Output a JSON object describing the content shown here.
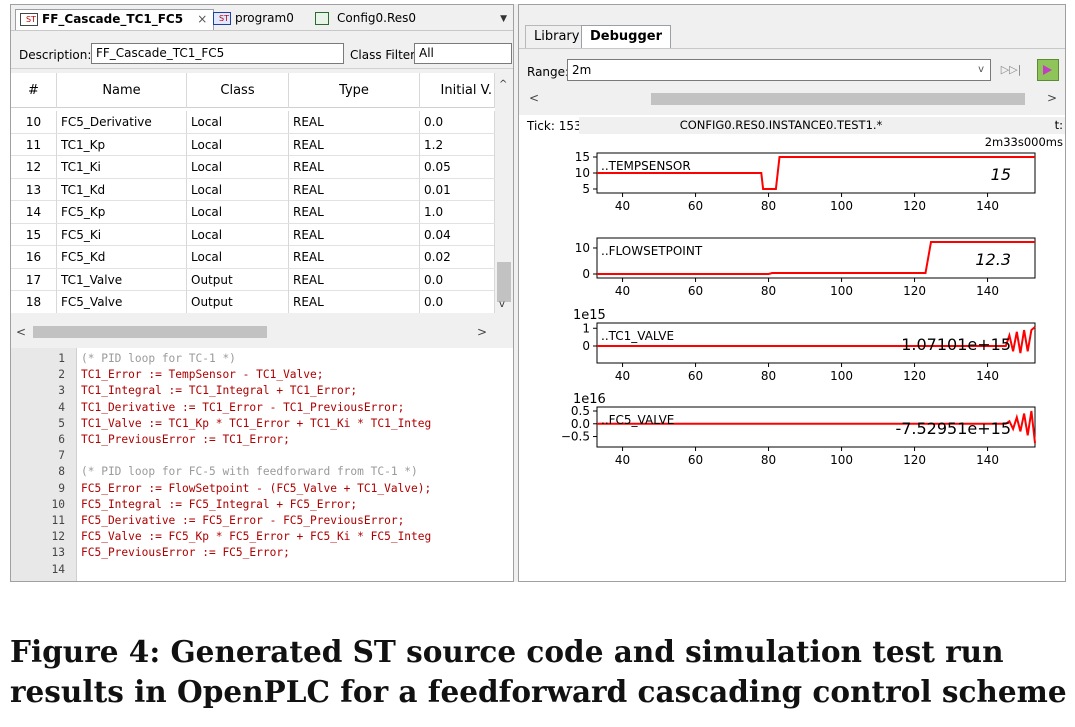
{
  "editor": {
    "tabs": [
      {
        "icon": "ST",
        "label": "FF_Cascade_TC1_FC5",
        "close": "×"
      },
      {
        "icon": "ST",
        "label": "program0"
      },
      {
        "icon": "",
        "label": "Config0.Res0"
      }
    ],
    "description_label": "Description:",
    "description_value": "FF_Cascade_TC1_FC5",
    "class_filter_label": "Class Filter:",
    "class_filter_value": "All",
    "columns": [
      "#",
      "Name",
      "Class",
      "Type",
      "Initial V."
    ],
    "rows": [
      [
        "10",
        "FC5_Derivative",
        "Local",
        "REAL",
        "0.0"
      ],
      [
        "11",
        "TC1_Kp",
        "Local",
        "REAL",
        "1.2"
      ],
      [
        "12",
        "TC1_Ki",
        "Local",
        "REAL",
        "0.05"
      ],
      [
        "13",
        "TC1_Kd",
        "Local",
        "REAL",
        "0.01"
      ],
      [
        "14",
        "FC5_Kp",
        "Local",
        "REAL",
        "1.0"
      ],
      [
        "15",
        "FC5_Ki",
        "Local",
        "REAL",
        "0.04"
      ],
      [
        "16",
        "FC5_Kd",
        "Local",
        "REAL",
        "0.02"
      ],
      [
        "17",
        "TC1_Valve",
        "Output",
        "REAL",
        "0.0"
      ],
      [
        "18",
        "FC5_Valve",
        "Output",
        "REAL",
        "0.0"
      ]
    ],
    "code": [
      {
        "n": "1",
        "t": "(* PID loop for TC-1 *)",
        "comment": true
      },
      {
        "n": "2",
        "t": "TC1_Error := TempSensor - TC1_Valve;"
      },
      {
        "n": "3",
        "t": "TC1_Integral := TC1_Integral + TC1_Error;"
      },
      {
        "n": "4",
        "t": "TC1_Derivative := TC1_Error - TC1_PreviousError;"
      },
      {
        "n": "5",
        "t": "TC1_Valve := TC1_Kp * TC1_Error + TC1_Ki * TC1_Integ"
      },
      {
        "n": "6",
        "t": "TC1_PreviousError := TC1_Error;"
      },
      {
        "n": "7",
        "t": ""
      },
      {
        "n": "8",
        "t": "(* PID loop for FC-5 with feedforward from TC-1 *)",
        "comment": true
      },
      {
        "n": "9",
        "t": "FC5_Error := FlowSetpoint - (FC5_Valve + TC1_Valve);"
      },
      {
        "n": "10",
        "t": "FC5_Integral := FC5_Integral + FC5_Error;"
      },
      {
        "n": "11",
        "t": "FC5_Derivative := FC5_Error - FC5_PreviousError;"
      },
      {
        "n": "12",
        "t": "FC5_Valve := FC5_Kp * FC5_Error + FC5_Ki * FC5_Integ"
      },
      {
        "n": "13",
        "t": "FC5_PreviousError := FC5_Error;"
      },
      {
        "n": "14",
        "t": ""
      }
    ]
  },
  "debugger": {
    "tabs": [
      "Library",
      "Debugger"
    ],
    "range_label": "Range:",
    "range_value": "2m",
    "tick_label": "Tick: 153",
    "instance": "CONFIG0.RES0.INSTANCE0.TEST1.*",
    "time": "t: 2m33s000ms",
    "line_color": "#ff0000",
    "plots": [
      {
        "name": "..TEMPSENSOR",
        "value": "15",
        "exponent": "",
        "yticks": [
          {
            "v": 15,
            "label": "15"
          },
          {
            "v": 10,
            "label": "10"
          },
          {
            "v": 5,
            "label": "5"
          }
        ],
        "ymin": 5,
        "ymax": 15,
        "xticks": [
          "40",
          "60",
          "80",
          "100",
          "120",
          "140"
        ],
        "series": [
          [
            33,
            10
          ],
          [
            78,
            10
          ],
          [
            78.5,
            5
          ],
          [
            82,
            5
          ],
          [
            83,
            15
          ],
          [
            153,
            15
          ]
        ]
      },
      {
        "name": "..FLOWSETPOINT",
        "value": "12.3",
        "exponent": "",
        "yticks": [
          {
            "v": 10,
            "label": "10"
          },
          {
            "v": 0,
            "label": "0"
          }
        ],
        "ymin": 0,
        "ymax": 12.3,
        "xticks": [
          "40",
          "60",
          "80",
          "100",
          "120",
          "140"
        ],
        "series": [
          [
            33,
            0
          ],
          [
            80,
            0
          ],
          [
            81,
            0.4
          ],
          [
            123,
            0.4
          ],
          [
            124.5,
            12.3
          ],
          [
            153,
            12.3
          ]
        ]
      },
      {
        "name": "..TC1_VALVE",
        "value": "1.07101e+15",
        "exponent": "1e15",
        "yticks": [
          {
            "v": 1,
            "label": "1"
          },
          {
            "v": 0,
            "label": "0"
          }
        ],
        "ymin": 0,
        "ymax": 1.07101,
        "xticks": [
          "40",
          "60",
          "80",
          "100",
          "120",
          "140"
        ],
        "series": [
          [
            33,
            0
          ],
          [
            145,
            0
          ],
          [
            146,
            0.6
          ],
          [
            147,
            -0.3
          ],
          [
            148,
            0.8
          ],
          [
            149,
            -0.4
          ],
          [
            150,
            0.9
          ],
          [
            151,
            -0.3
          ],
          [
            152,
            0.9
          ],
          [
            153,
            1.07101
          ]
        ]
      },
      {
        "name": "..FC5_VALVE",
        "value": "-7.52951e+15",
        "exponent": "1e16",
        "yticks": [
          {
            "v": 0.5,
            "label": "0.5"
          },
          {
            "v": 0,
            "label": "0.0"
          },
          {
            "v": -0.5,
            "label": "−0.5"
          }
        ],
        "ymin": -0.75295,
        "ymax": 0.5,
        "xticks": [
          "40",
          "60",
          "80",
          "100",
          "120",
          "140"
        ],
        "series": [
          [
            33,
            0
          ],
          [
            145,
            0
          ],
          [
            146,
            0.1
          ],
          [
            147,
            -0.2
          ],
          [
            148,
            0.25
          ],
          [
            149,
            -0.3
          ],
          [
            150,
            0.4
          ],
          [
            151,
            -0.45
          ],
          [
            152,
            0.5
          ],
          [
            153,
            -0.75295
          ]
        ]
      }
    ]
  },
  "caption": "Figure 4: Generated ST source code and simulation test run results in OpenPLC for a feedforward cascading control scheme"
}
